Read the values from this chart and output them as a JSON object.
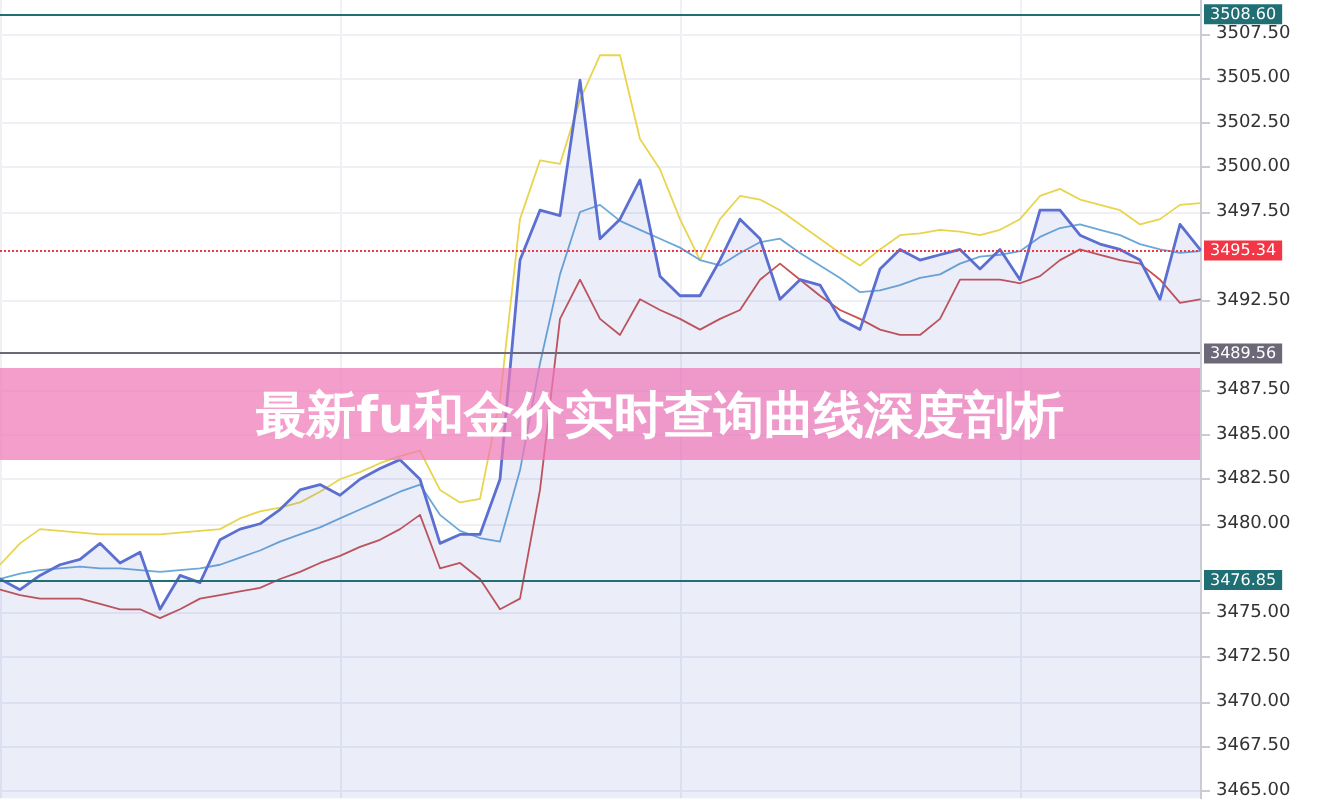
{
  "chart_data": {
    "type": "line",
    "title": "最新fu和金价实时查询曲线深度剖析",
    "categories": [
      null,
      null,
      null,
      null,
      null,
      null,
      null,
      null,
      null,
      null,
      null,
      null,
      null,
      null,
      null,
      null,
      null,
      null,
      null,
      null,
      null,
      null,
      null,
      null,
      null,
      null,
      null,
      null,
      null,
      null,
      null,
      null,
      null,
      null,
      null,
      null,
      null,
      null,
      null,
      null,
      null,
      null,
      null,
      null,
      null,
      null,
      null,
      null,
      null,
      null,
      null,
      null,
      null,
      null,
      null,
      null,
      null,
      null,
      null,
      null,
      null
    ],
    "series": [
      {
        "color": "#e8d44d",
        "values": [
          3477.7,
          3478.9,
          3479.7,
          3479.6,
          3479.5,
          3479.4,
          3479.4,
          3479.4,
          3479.4,
          3479.5,
          3479.6,
          3479.7,
          3480.3,
          3480.7,
          3480.9,
          3481.2,
          3481.8,
          3482.5,
          3482.9,
          3483.4,
          3483.8,
          3484.1,
          3481.9,
          3481.2,
          3481.4,
          3487.0,
          3497.1,
          3500.4,
          3500.2,
          3503.8,
          3506.3,
          3506.3,
          3501.6,
          3499.9,
          3497.1,
          3494.8,
          3497.1,
          3498.4,
          3498.2,
          3497.6,
          3496.8,
          3496.0,
          3495.2,
          3494.5,
          3495.4,
          3496.2,
          3496.3,
          3496.5,
          3496.4,
          3496.2,
          3496.5,
          3497.1,
          3498.4,
          3498.8,
          3498.2,
          3497.9,
          3497.6,
          3496.8,
          3497.1,
          3497.9,
          3498.0
        ]
      },
      {
        "color": "#c9504d",
        "values": [
          3476.3,
          3476.0,
          3475.8,
          3475.8,
          3475.8,
          3475.5,
          3475.2,
          3475.2,
          3474.7,
          3475.2,
          3475.8,
          3476.0,
          3476.2,
          3476.4,
          3476.9,
          3477.3,
          3477.8,
          3478.2,
          3478.7,
          3479.1,
          3479.7,
          3480.5,
          3477.5,
          3477.8,
          3476.9,
          3475.2,
          3475.8,
          3481.9,
          3491.5,
          3493.7,
          3491.5,
          3490.6,
          3492.6,
          3492.0,
          3491.5,
          3490.9,
          3491.5,
          3492.0,
          3493.7,
          3494.6,
          3493.7,
          3492.8,
          3492.0,
          3491.5,
          3490.9,
          3490.6,
          3490.6,
          3491.5,
          3493.7,
          3493.7,
          3493.7,
          3493.5,
          3493.9,
          3494.8,
          3495.4,
          3495.1,
          3494.8,
          3494.6,
          3493.7,
          3492.4,
          3492.6
        ]
      },
      {
        "color": "#6aa8d8",
        "values": [
          3476.9,
          3477.2,
          3477.4,
          3477.5,
          3477.6,
          3477.5,
          3477.5,
          3477.4,
          3477.3,
          3477.4,
          3477.5,
          3477.7,
          3478.1,
          3478.5,
          3479.0,
          3479.4,
          3479.8,
          3480.3,
          3480.8,
          3481.3,
          3481.8,
          3482.2,
          3480.5,
          3479.6,
          3479.2,
          3479.0,
          3483.0,
          3489.0,
          3494.0,
          3497.5,
          3497.9,
          3497.0,
          3496.5,
          3496.0,
          3495.5,
          3494.8,
          3494.5,
          3495.2,
          3495.8,
          3496.0,
          3495.2,
          3494.5,
          3493.8,
          3493.0,
          3493.1,
          3493.4,
          3493.8,
          3494.0,
          3494.6,
          3495.0,
          3495.1,
          3495.3,
          3496.1,
          3496.6,
          3496.8,
          3496.5,
          3496.2,
          3495.7,
          3495.4,
          3495.2,
          3495.3
        ]
      },
      {
        "type": "area",
        "color": "#5b6fd1",
        "values": [
          3476.9,
          3476.3,
          3477.1,
          3477.7,
          3478.0,
          3478.9,
          3477.8,
          3478.4,
          3475.2,
          3477.1,
          3476.7,
          3479.1,
          3479.7,
          3480.0,
          3480.8,
          3481.9,
          3482.2,
          3481.6,
          3482.5,
          3483.1,
          3483.6,
          3482.5,
          3478.9,
          3479.4,
          3479.4,
          3482.5,
          3494.8,
          3497.6,
          3497.3,
          3504.9,
          3496.0,
          3497.1,
          3499.3,
          3493.9,
          3492.8,
          3492.8,
          3494.8,
          3497.1,
          3496.0,
          3492.6,
          3493.7,
          3493.4,
          3491.5,
          3490.9,
          3494.3,
          3495.4,
          3494.8,
          3495.1,
          3495.4,
          3494.3,
          3495.4,
          3493.7,
          3497.6,
          3497.6,
          3496.2,
          3495.7,
          3495.4,
          3494.8,
          3492.6,
          3496.8,
          3495.4
        ]
      }
    ],
    "ylim": [
      3464.6,
      3509.4
    ],
    "yticks": [
      {
        "value": 3465,
        "label": "3465.00"
      },
      {
        "value": 3467.5,
        "label": "3467.50"
      },
      {
        "value": 3470,
        "label": "3470.00"
      },
      {
        "value": 3472.5,
        "label": "3472.50"
      },
      {
        "value": 3475,
        "label": "3475.00"
      },
      {
        "value": 3480,
        "label": "3480.00"
      },
      {
        "value": 3482.5,
        "label": "3482.50"
      },
      {
        "value": 3485,
        "label": "3485.00"
      },
      {
        "value": 3487.5,
        "label": "3487.50"
      },
      {
        "value": 3492.5,
        "label": "3492.50"
      },
      {
        "value": 3497.5,
        "label": "3497.50"
      },
      {
        "value": 3500,
        "label": "3500.00"
      },
      {
        "value": 3502.5,
        "label": "3502.50"
      },
      {
        "value": 3505,
        "label": "3505.00"
      },
      {
        "value": 3507.5,
        "label": "3507.50"
      }
    ],
    "ref_lines": [
      {
        "axis": "y",
        "value": 3508.6,
        "label": "3508.60",
        "color": "#1f6f74",
        "line_style": "solid"
      },
      {
        "axis": "y",
        "value": 3495.34,
        "label": "3495.34",
        "color": "#f23645",
        "line_style": "dotted"
      },
      {
        "axis": "y",
        "value": 3489.56,
        "label": "3489.56",
        "color": "#6d6878",
        "line_style": "solid"
      },
      {
        "axis": "y",
        "value": 3476.85,
        "label": "3476.85",
        "color": "#1f6f74",
        "line_style": "solid"
      }
    ],
    "grid": true,
    "marker": "none",
    "line_style": "solid"
  }
}
